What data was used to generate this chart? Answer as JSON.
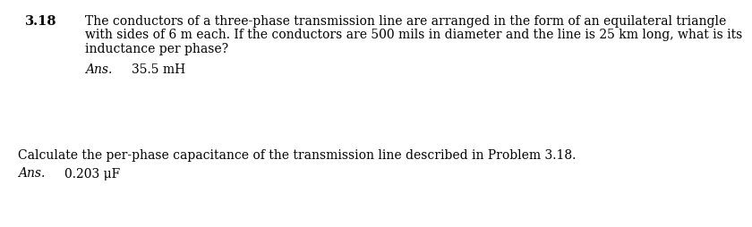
{
  "background_color": "#ffffff",
  "text_color": "#000000",
  "problem_number": "3.18",
  "problem_text_line1": "The conductors of a three-phase transmission line are arranged in the form of an equilateral triangle",
  "problem_text_line2": "with sides of 6 m each. If the conductors are 500 mils in diameter and the line is 25 km long, what is its",
  "problem_text_line3": "inductance per phase?",
  "ans1_label": "Ans.",
  "ans1_value": "35.5 mH",
  "problem2_text": "Calculate the per-phase capacitance of the transmission line described in Problem 3.18.",
  "ans2_label": "Ans.",
  "ans2_value": "0.203 μF",
  "main_fontsize": 10.0,
  "problem_num_fontsize": 10.5
}
